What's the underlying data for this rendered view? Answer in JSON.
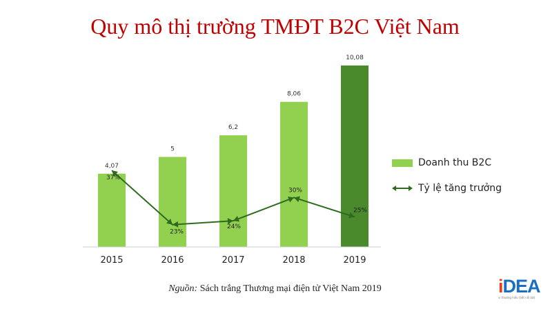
{
  "title": "Quy mô thị trường TMĐT B2C Việt Nam",
  "chart_data": {
    "type": "bar",
    "categories": [
      "2015",
      "2016",
      "2017",
      "2018",
      "2019"
    ],
    "series": [
      {
        "name": "Doanh thu B2C",
        "kind": "bar",
        "values": [
          4.07,
          5,
          6.2,
          8.06,
          10.08
        ],
        "labels": [
          "4,07",
          "5",
          "6,2",
          "8,06",
          "10,08"
        ]
      },
      {
        "name": "Tỷ lệ tăng trưởng",
        "kind": "line",
        "values": [
          37,
          23,
          24,
          30,
          25
        ],
        "labels": [
          "37%",
          "23%",
          "24%",
          "30%",
          "25%"
        ]
      }
    ],
    "colors": {
      "bar": "#92d050",
      "bar_highlight": "#4a8a2c",
      "line": "#2f6b1f"
    },
    "legend_position": "right",
    "grid": false
  },
  "legend": {
    "bar_label": "Doanh thu B2C",
    "line_label": "Tỷ lệ tăng trưởng"
  },
  "source": {
    "prefix": "Nguồn:",
    "text": " Sách trắng Thương mại điện tử Việt Nam 2019"
  },
  "logo": {
    "text_i": "i",
    "text_rest": "DEA",
    "tagline": "vì thương hiệu Việt nổi bật"
  }
}
